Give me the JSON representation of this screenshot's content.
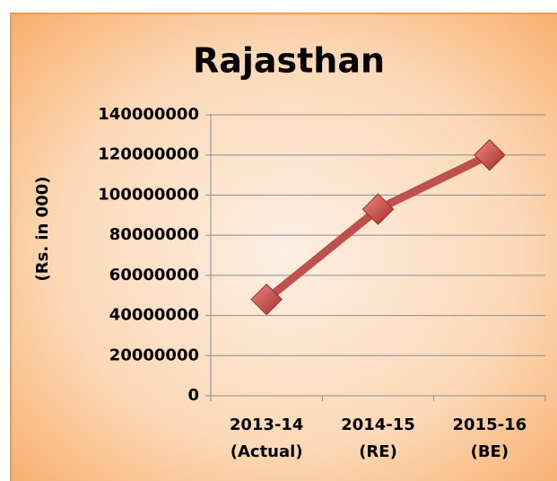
{
  "chart_data": {
    "type": "line",
    "title": "Rajasthan",
    "y_label": "(Rs. in 000)",
    "categories": [
      "2013-14\n(Actual)",
      "2014-15\n(RE)",
      "2015-16\n(BE)"
    ],
    "values": [
      48000000,
      93000000,
      120000000
    ],
    "color": "#c0504d",
    "ylim": [
      0,
      140000000
    ],
    "yticks": [
      0,
      20000000,
      40000000,
      60000000,
      80000000,
      100000000,
      120000000,
      140000000
    ],
    "grid": true
  }
}
